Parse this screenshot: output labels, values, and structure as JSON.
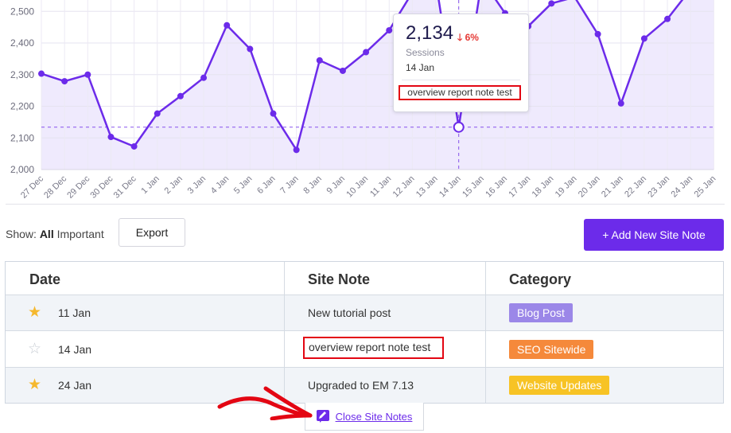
{
  "chart_data": {
    "type": "area",
    "x": [
      "27 Dec",
      "28 Dec",
      "29 Dec",
      "30 Dec",
      "31 Dec",
      "1 Jan",
      "2 Jan",
      "3 Jan",
      "4 Jan",
      "5 Jan",
      "6 Jan",
      "7 Jan",
      "8 Jan",
      "9 Jan",
      "10 Jan",
      "11 Jan",
      "12 Jan",
      "13 Jan",
      "14 Jan",
      "15 Jan",
      "16 Jan",
      "17 Jan",
      "18 Jan",
      "19 Jan",
      "20 Jan",
      "21 Jan",
      "22 Jan",
      "23 Jan",
      "24 Jan",
      "25 Jan"
    ],
    "series": [
      {
        "values": [
          2303,
          2279,
          2300,
          2103,
          2073,
          2177,
          2232,
          2290,
          2456,
          2381,
          2177,
          2062,
          2345,
          2312,
          2371,
          2440,
          2560,
          2600,
          2134,
          2600,
          2494,
          2453,
          2525,
          2545,
          2428,
          2209,
          2414,
          2476,
          2570,
          2600
        ]
      }
    ],
    "yticks": [
      "2,000",
      "2,100",
      "2,200",
      "2,300",
      "2,400",
      "2,500"
    ],
    "ylim": [
      2000,
      2540
    ],
    "reference_line": 2134,
    "highlight_date": "14 Jan",
    "color": "#6c2bea",
    "fill": "#efeafd",
    "grid": true
  },
  "tooltip": {
    "value": "2,134",
    "change": "6%",
    "label": "Sessions",
    "date": "14 Jan",
    "note": "overview report note test"
  },
  "controls": {
    "show_prefix": "Show:",
    "show_all": "All",
    "show_important": "Important",
    "export_label": "Export",
    "add_label": "+ Add New Site Note"
  },
  "table": {
    "headers": {
      "date": "Date",
      "note": "Site Note",
      "category": "Category"
    },
    "rows": [
      {
        "date": "11 Jan",
        "note": "New tutorial post",
        "category": "Blog Post",
        "important": true,
        "color": "#9b87e8"
      },
      {
        "date": "14 Jan",
        "note": "overview report note test",
        "category": "SEO Sitewide",
        "important": false,
        "color": "#f5893b"
      },
      {
        "date": "24 Jan",
        "note": "Upgraded to EM 7.13",
        "category": "Website Updates",
        "important": true,
        "color": "#f7c325"
      }
    ]
  },
  "close_label": "Close Site Notes",
  "colors": {
    "accent": "#6c2bea",
    "highlight": "#e30613"
  }
}
